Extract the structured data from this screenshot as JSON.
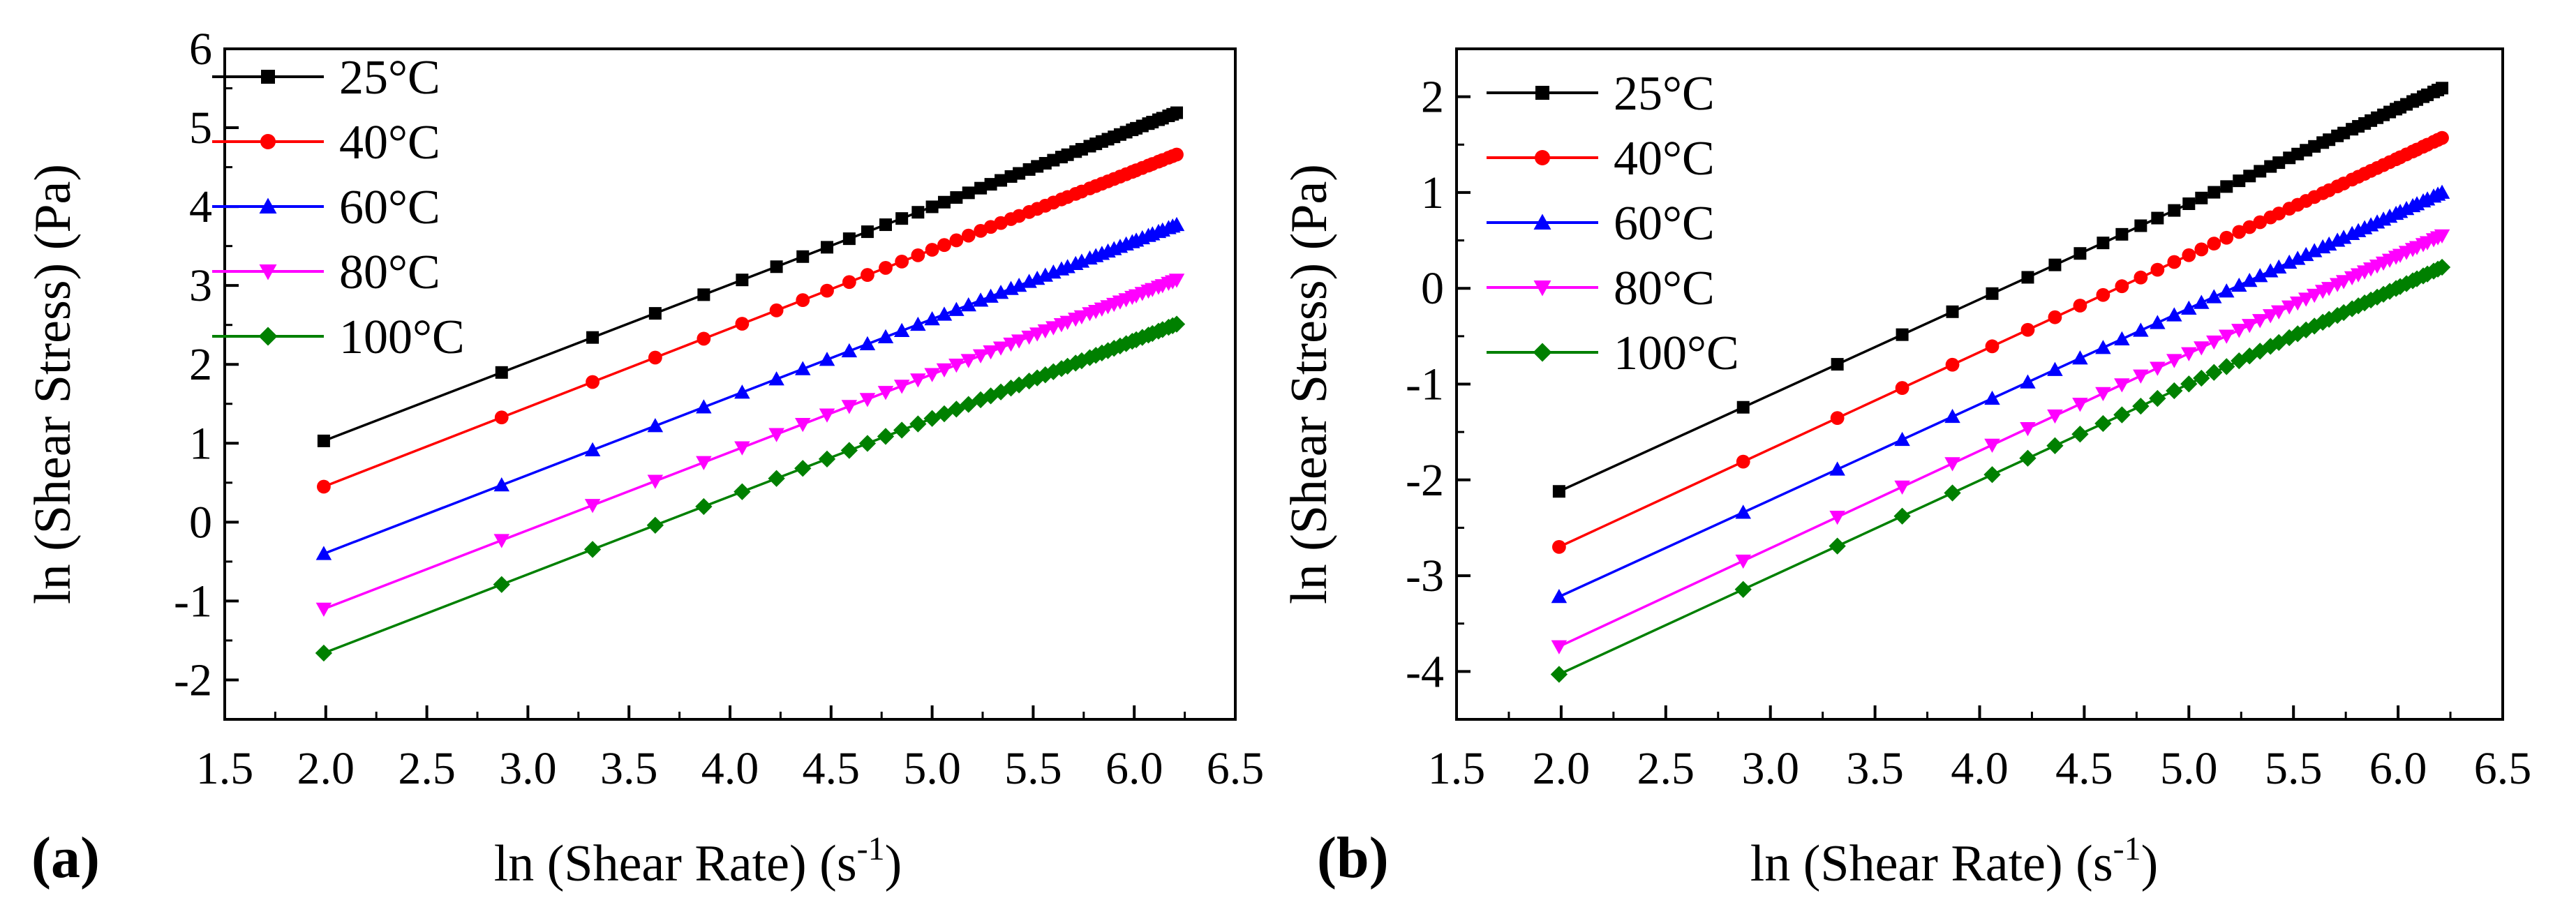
{
  "chart_data": [
    {
      "panel_label": "(a)",
      "type": "line",
      "xlabel": "ln (Shear Rate) (s",
      "xlabel_sup": "-1",
      "xlabel_end": ")",
      "ylabel": "ln (Shear Stress) (Pa)",
      "xlim": [
        1.5,
        6.5
      ],
      "ylim": [
        -2.5,
        6
      ],
      "xticks": [
        "1.5",
        "2.0",
        "2.5",
        "3.0",
        "3.5",
        "4.0",
        "4.5",
        "5.0",
        "5.5",
        "6.0",
        "6.5"
      ],
      "yticks": [
        "-2",
        "-1",
        "0",
        "1",
        "2",
        "3",
        "4",
        "5",
        "6"
      ],
      "x_start": 1.99,
      "x_end": 6.21,
      "legend_position": "top-left",
      "series": [
        {
          "name": "25°C",
          "color": "#000000",
          "marker": "square",
          "y_start": 1.03,
          "y_end": 5.19
        },
        {
          "name": "40°C",
          "color": "#ff0000",
          "marker": "circle",
          "y_start": 0.45,
          "y_end": 4.66
        },
        {
          "name": "60°C",
          "color": "#0000ff",
          "marker": "triangle-up",
          "y_start": -0.4,
          "y_end": 3.77
        },
        {
          "name": "80°C",
          "color": "#ff00ff",
          "marker": "triangle-down",
          "y_start": -1.1,
          "y_end": 3.07
        },
        {
          "name": "100°C",
          "color": "#008000",
          "marker": "diamond",
          "y_start": -1.66,
          "y_end": 2.51
        }
      ]
    },
    {
      "panel_label": "(b)",
      "type": "line",
      "xlabel": "ln (Shear Rate) (s",
      "xlabel_sup": "-1",
      "xlabel_end": ")",
      "ylabel": "ln (Shear Stress) (Pa)",
      "xlim": [
        1.5,
        6.5
      ],
      "ylim": [
        -4.5,
        2.5
      ],
      "xticks": [
        "1.5",
        "2.0",
        "2.5",
        "3.0",
        "3.5",
        "4.0",
        "4.5",
        "5.0",
        "5.5",
        "6.0",
        "6.5"
      ],
      "yticks": [
        "-4",
        "-3",
        "-2",
        "-1",
        "0",
        "1",
        "2"
      ],
      "x_start": 1.99,
      "x_end": 6.21,
      "legend_position": "top-left",
      "series": [
        {
          "name": "25°C",
          "color": "#000000",
          "marker": "square",
          "y_start": -2.12,
          "y_end": 2.09
        },
        {
          "name": "40°C",
          "color": "#ff0000",
          "marker": "circle",
          "y_start": -2.7,
          "y_end": 1.57
        },
        {
          "name": "60°C",
          "color": "#0000ff",
          "marker": "triangle-up",
          "y_start": -3.22,
          "y_end": 1.0
        },
        {
          "name": "80°C",
          "color": "#ff00ff",
          "marker": "triangle-down",
          "y_start": -3.74,
          "y_end": 0.55
        },
        {
          "name": "100°C",
          "color": "#008000",
          "marker": "diamond",
          "y_start": -4.03,
          "y_end": 0.22
        }
      ]
    }
  ],
  "marker_x": [
    1.99,
    2.87,
    3.32,
    3.63,
    3.87,
    4.06,
    4.23,
    4.36,
    4.48,
    4.59,
    4.68,
    4.77,
    4.85,
    4.93,
    5.0,
    5.06,
    5.12,
    5.18,
    5.24,
    5.29,
    5.34,
    5.39,
    5.43,
    5.48,
    5.52,
    5.56,
    5.6,
    5.64,
    5.67,
    5.71,
    5.74,
    5.78,
    5.81,
    5.84,
    5.87,
    5.9,
    5.93,
    5.96,
    5.99,
    6.01,
    6.04,
    6.07,
    6.09,
    6.12,
    6.14,
    6.17,
    6.19,
    6.21
  ]
}
